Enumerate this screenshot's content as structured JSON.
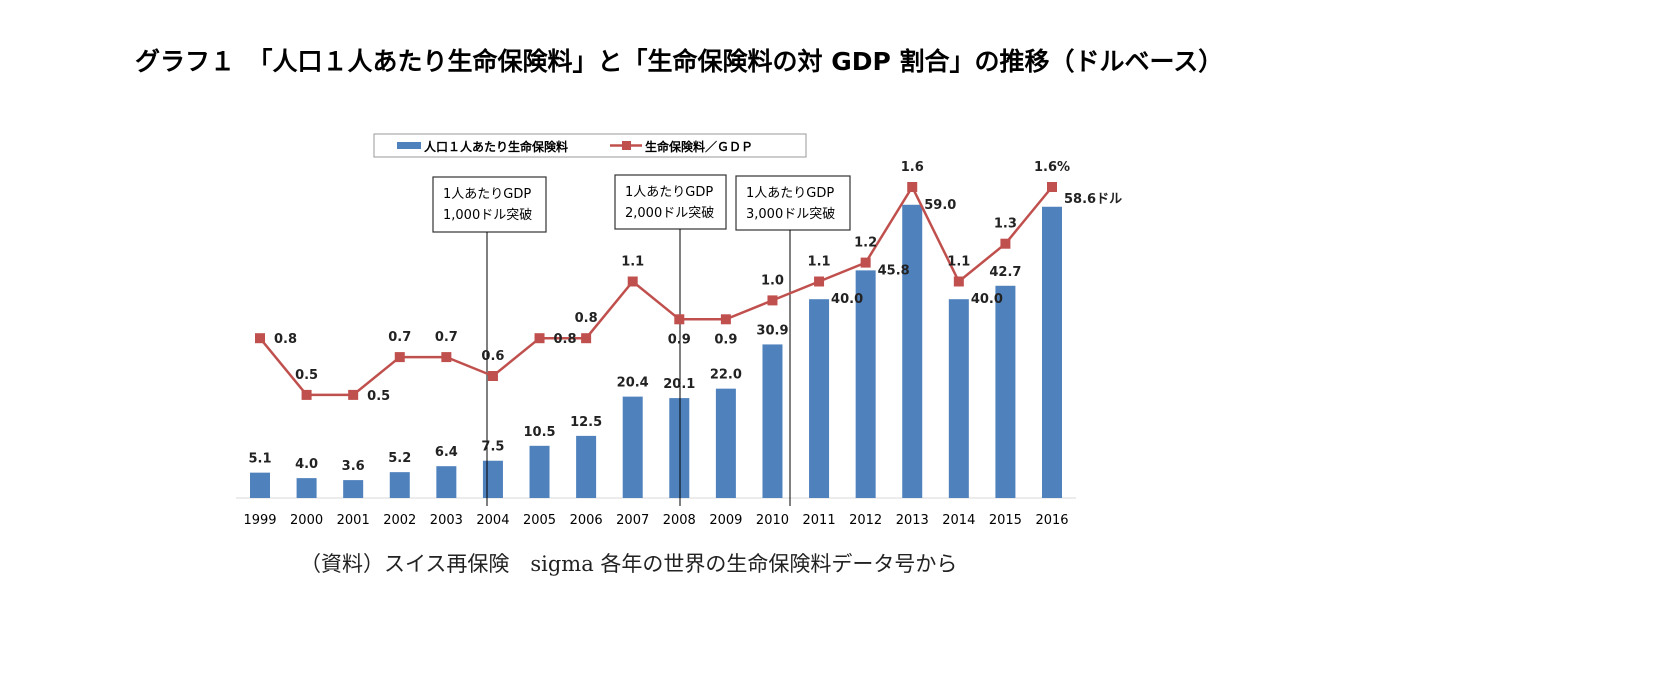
{
  "title": "グラフ１　「人口１人あたり生命保険料」と「生命保険料の対 GDP 割合」の推移（ドルベース）",
  "source": "（資料）スイス再保険　sigma 各年の世界の生命保険料データ号から",
  "chart_data": {
    "type": "bar+line",
    "categories": [
      "1999",
      "2000",
      "2001",
      "2002",
      "2003",
      "2004",
      "2005",
      "2006",
      "2007",
      "2008",
      "2009",
      "2010",
      "2011",
      "2012",
      "2013",
      "2014",
      "2015",
      "2016"
    ],
    "series": [
      {
        "name": "人口１人あたり生命保険料",
        "type": "bar",
        "color": "#4f81bd",
        "values": [
          5.1,
          4.0,
          3.6,
          5.2,
          6.4,
          7.5,
          10.5,
          12.5,
          20.4,
          20.1,
          22.0,
          30.9,
          40.0,
          45.8,
          59.0,
          40.0,
          42.7,
          58.6
        ],
        "labels": [
          "5.1",
          "4.0",
          "3.6",
          "5.2",
          "6.4",
          "7.5",
          "10.5",
          "12.5",
          "20.4",
          "20.1",
          "22.0",
          "30.9",
          "40.0",
          "45.8",
          "59.0",
          "40.0",
          "42.7",
          "58.6ドル"
        ]
      },
      {
        "name": "生命保険料／ＧＤＰ",
        "type": "line",
        "color": "#c0504d",
        "values": [
          0.8,
          0.5,
          0.5,
          0.7,
          0.7,
          0.6,
          0.8,
          0.8,
          1.1,
          0.9,
          0.9,
          1.0,
          1.1,
          1.2,
          1.6,
          1.1,
          1.3,
          1.6
        ],
        "labels": [
          "0.8",
          "0.5",
          "0.5",
          "0.7",
          "0.7",
          "0.6",
          "0.8",
          "0.8",
          "1.1",
          "0.9",
          "0.9",
          "1.0",
          "1.1",
          "1.2",
          "1.6",
          "1.1",
          "1.3",
          "1.6%"
        ]
      }
    ],
    "annotations": [
      {
        "year": "2004",
        "lines": [
          "1人あたりGDP",
          "1,000ドル突破"
        ]
      },
      {
        "year": "2008",
        "lines": [
          "1人あたりGDP",
          "2,000ドル突破"
        ]
      },
      {
        "year": "2010",
        "lines": [
          "1人あたりGDP",
          "3,000ドル突破"
        ]
      }
    ],
    "legend": "top",
    "grid": false
  }
}
